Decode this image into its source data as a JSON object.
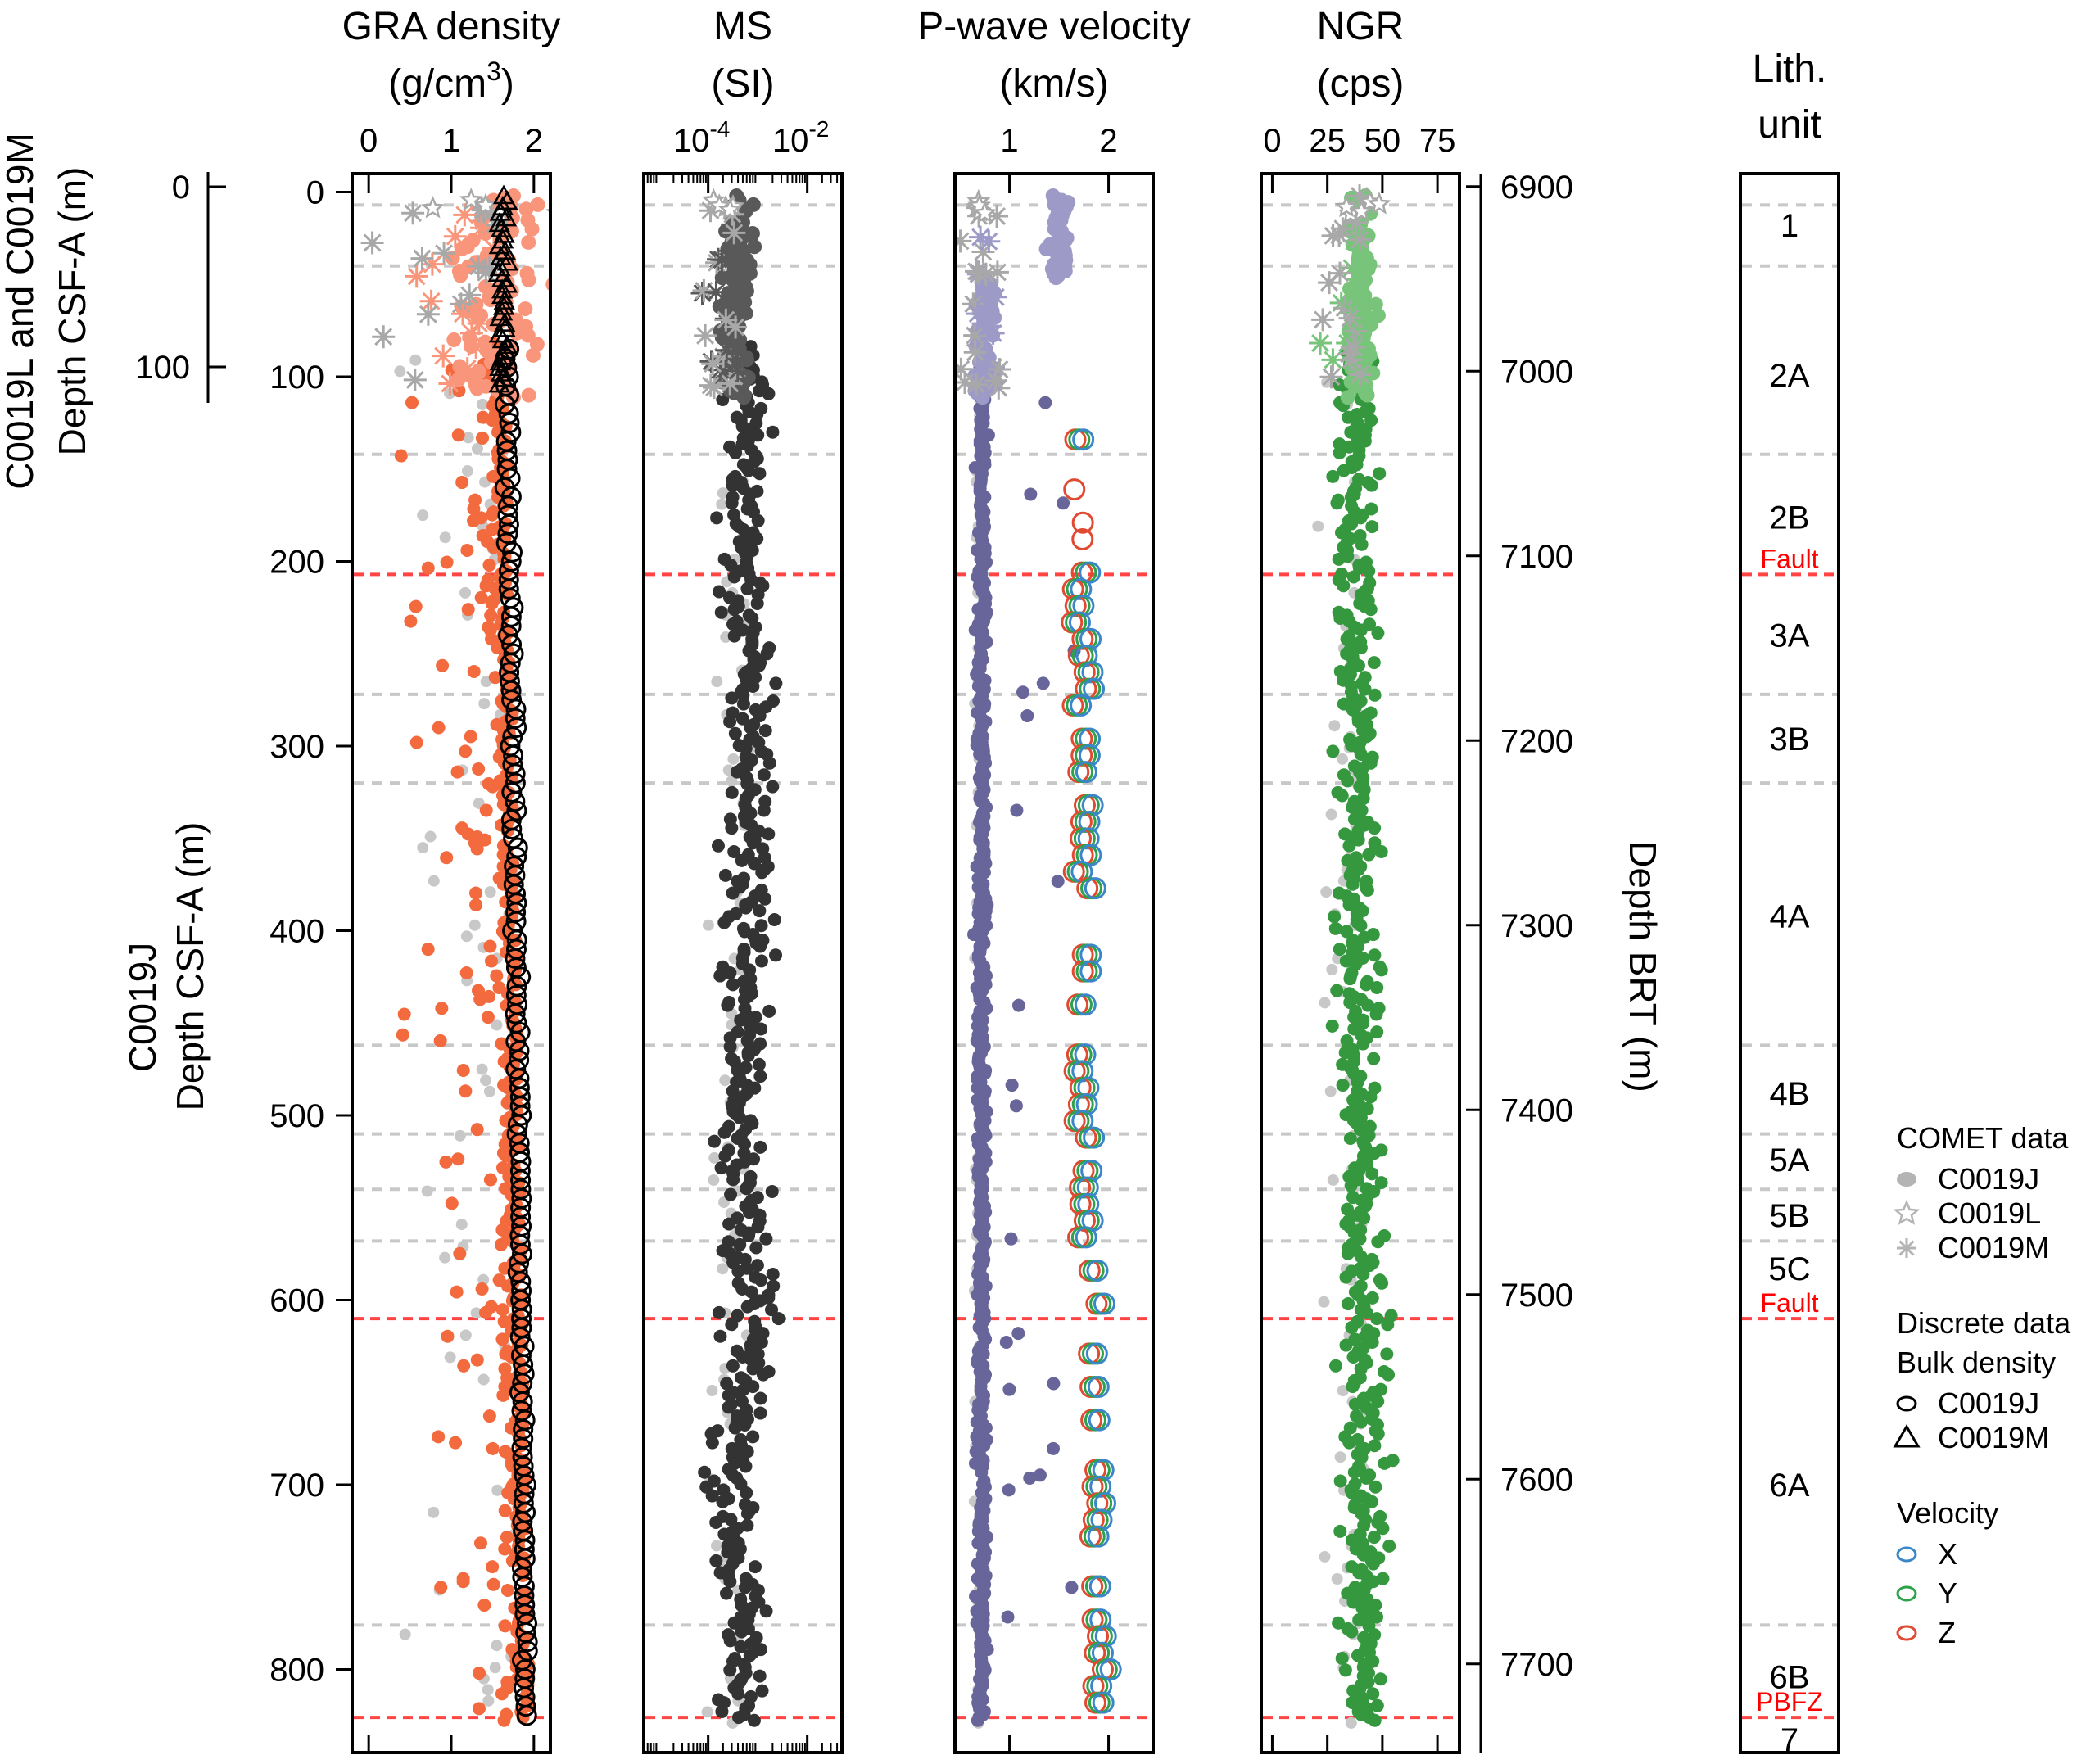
{
  "chart_data": {
    "type": "scatter",
    "description": "Downhole physical property logs vs depth",
    "depth_axes": {
      "left_upper": {
        "label_line1": "C0019L and C0019M",
        "label_line2": "Depth CSF-A (m)",
        "ticks": [
          0,
          100
        ],
        "range": [
          -5,
          110
        ]
      },
      "left_main": {
        "label_line1": "C0019J",
        "label_line2": "Depth CSF-A (m)",
        "ticks": [
          0,
          100,
          200,
          300,
          400,
          500,
          600,
          700,
          800
        ],
        "range": [
          -10,
          845
        ]
      },
      "right": {
        "label": "Depth BRT (m)",
        "ticks": [
          6900,
          7000,
          7100,
          7200,
          7300,
          7400,
          7500,
          7600,
          7700
        ],
        "range": [
          6893,
          7748
        ]
      }
    },
    "panels": [
      {
        "id": "gra",
        "title_line1": "GRA density",
        "title_line2": "(g/cm",
        "title_sup": "3",
        "title_tail": ")",
        "scale": "linear",
        "xlim": [
          -0.2,
          2.2
        ],
        "ticks": [
          {
            "v": 0,
            "label": "0"
          },
          {
            "v": 1,
            "label": "1"
          },
          {
            "v": 2,
            "label": "2"
          }
        ],
        "comet_color": "#f26a3d",
        "upper_color": "#f8957a",
        "trend": {
          "depths": [
            0,
            100,
            200,
            300,
            400,
            500,
            600,
            700,
            830
          ],
          "values": [
            1.55,
            1.65,
            1.7,
            1.75,
            1.78,
            1.82,
            1.86,
            1.9,
            1.95
          ]
        },
        "spread": 0.9,
        "discrete": {
          "kind": "bulk-density",
          "depths": [
            0,
            100,
            200,
            300,
            400,
            500,
            600,
            700,
            830
          ],
          "values": [
            1.6,
            1.68,
            1.7,
            1.75,
            1.78,
            1.82,
            1.85,
            1.88,
            1.92
          ]
        }
      },
      {
        "id": "ms",
        "title_line1": "MS",
        "title_line2": "(SI)",
        "scale": "log",
        "xlim": [
          -5.3,
          -1.3
        ],
        "ticks": [
          {
            "v": -4,
            "label": "10",
            "sup": "-4"
          },
          {
            "v": -2,
            "label": "10",
            "sup": "-2"
          }
        ],
        "comet_color": "#333333",
        "upper_color": "#595959",
        "trend": {
          "depths": [
            0,
            100,
            200,
            300,
            400,
            500,
            600,
            700,
            830
          ],
          "values": [
            -3.4,
            -3.2,
            -3.3,
            -3.1,
            -3.2,
            -3.3,
            -3.15,
            -3.5,
            -3.2
          ]
        },
        "spread": 0.5
      },
      {
        "id": "vp",
        "title_line1": "P-wave velocity",
        "title_line2": "(km/s)",
        "scale": "linear",
        "xlim": [
          0.45,
          2.45
        ],
        "ticks": [
          {
            "v": 1,
            "label": "1"
          },
          {
            "v": 2,
            "label": "2"
          }
        ],
        "comet_color": "#676599",
        "upper_color": "#9d9ac8",
        "trend": {
          "depths": [
            0,
            830
          ],
          "values": [
            0.72,
            0.72
          ]
        },
        "spread": 0.05,
        "discrete": {
          "kind": "velocity",
          "depth_start": 125,
          "depth_end": 830,
          "mean": 1.75
        }
      },
      {
        "id": "ngr",
        "title_line1": "NGR",
        "title_line2": "(cps)",
        "scale": "linear",
        "xlim": [
          -5,
          85
        ],
        "ticks": [
          {
            "v": 0,
            "label": "0"
          },
          {
            "v": 25,
            "label": "25"
          },
          {
            "v": 50,
            "label": "50"
          },
          {
            "v": 75,
            "label": "75"
          }
        ],
        "comet_color": "#35983f",
        "upper_color": "#77c47a",
        "trend": {
          "depths": [
            0,
            100,
            200,
            300,
            400,
            500,
            600,
            700,
            830
          ],
          "values": [
            40,
            38,
            38,
            40,
            38,
            40,
            42,
            42,
            40
          ]
        },
        "spread": 10
      }
    ],
    "lithology": {
      "title_line1": "Lith.",
      "title_line2": "unit",
      "boundaries": [
        {
          "depth": 142,
          "type": "unit"
        },
        {
          "depth": 207,
          "type": "fault",
          "label": "Fault"
        },
        {
          "depth": 272,
          "type": "unit"
        },
        {
          "depth": 320,
          "type": "unit"
        },
        {
          "depth": 462,
          "type": "unit"
        },
        {
          "depth": 510,
          "type": "unit"
        },
        {
          "depth": 540,
          "type": "unit"
        },
        {
          "depth": 568,
          "type": "unit"
        },
        {
          "depth": 610,
          "type": "fault",
          "label": "Fault"
        },
        {
          "depth": 776,
          "type": "unit"
        },
        {
          "depth": 826,
          "type": "fault",
          "label": "PBFZ"
        }
      ],
      "upper_boundaries_brt": [
        6910,
        6943
      ],
      "units": [
        {
          "label": "1",
          "depth_brt": 6921
        },
        {
          "label": "2A",
          "depth_brt": 7002
        },
        {
          "label": "2B",
          "depth": 176
        },
        {
          "label": "3A",
          "depth": 240
        },
        {
          "label": "3B",
          "depth": 296
        },
        {
          "label": "4A",
          "depth": 392
        },
        {
          "label": "4B",
          "depth": 488
        },
        {
          "label": "5A",
          "depth": 524
        },
        {
          "label": "5B",
          "depth": 554
        },
        {
          "label": "5C",
          "depth": 583
        },
        {
          "label": "6A",
          "depth": 700
        },
        {
          "label": "6B",
          "depth": 804
        },
        {
          "label": "7",
          "depth": 838
        }
      ]
    },
    "legend": {
      "comet_title": "COMET data",
      "comet_items": [
        {
          "marker": "filled-circle",
          "label": "C0019J"
        },
        {
          "marker": "star",
          "label": "C0019L"
        },
        {
          "marker": "asterisk",
          "label": "C0019M"
        }
      ],
      "discrete_title": "Discrete data",
      "bulk_title": "Bulk density",
      "bulk_items": [
        {
          "marker": "open-circle",
          "label": "C0019J"
        },
        {
          "marker": "open-triangle",
          "label": "C0019M"
        }
      ],
      "velocity_title": "Velocity",
      "velocity_items": [
        {
          "marker": "open-circle",
          "label": "X",
          "color": "#3a86c8"
        },
        {
          "marker": "open-circle",
          "label": "Y",
          "color": "#2ea24a"
        },
        {
          "marker": "open-circle",
          "label": "Z",
          "color": "#e04a32"
        }
      ]
    },
    "colors": {
      "fault_line": "#ff4444",
      "unit_line": "#c8c8c8",
      "gray_points": "#c8c8c8",
      "upper_gray": "#a8a8a8",
      "fault_text": "#ff0000"
    }
  }
}
